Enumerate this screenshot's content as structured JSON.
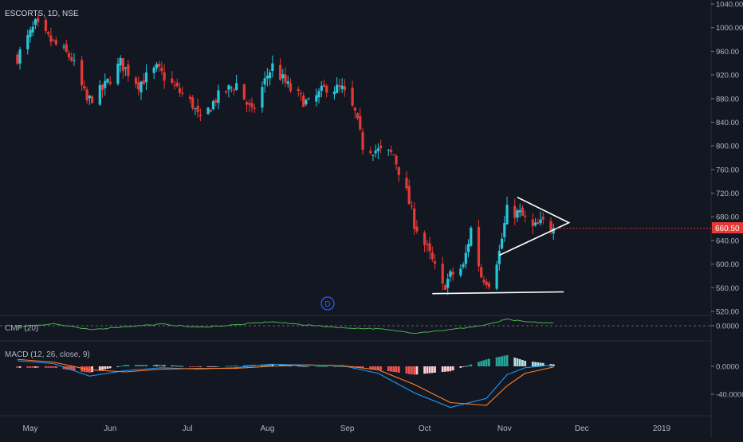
{
  "header": {
    "symbol_label": "ESCORTS, 1D, NSE"
  },
  "colors": {
    "background": "#131722",
    "up": "#26c6da",
    "down": "#e53935",
    "axis_text": "#b2b5be",
    "grid": "#2a2e39",
    "pattern_lines": "#ffffff",
    "cmf_line": "#4caf50",
    "macd_line": "#2196f3",
    "signal_line": "#ff7f27",
    "hist_pos_strong": "#26a69a",
    "hist_pos_weak": "#b2dfdb",
    "hist_neg_strong": "#ef5350",
    "hist_neg_weak": "#ffcdd2",
    "price_tag_bg": "#e53935"
  },
  "price_tag": "660.50",
  "marker_label": "D",
  "chart_data": [
    {
      "type": "candlestick",
      "title": "ESCORTS, 1D, NSE",
      "price_axis_ticks": [
        "1040.00",
        "1000.00",
        "960.00",
        "920.00",
        "880.00",
        "840.00",
        "800.00",
        "760.00",
        "720.00",
        "680.00",
        "640.00",
        "600.00",
        "560.00",
        "520.00"
      ],
      "ylim": [
        520,
        1040
      ],
      "x_axis_labels": [
        "May",
        "Jun",
        "Jul",
        "Aug",
        "Sep",
        "Oct",
        "Nov",
        "Dec",
        "2019"
      ],
      "key_points": [
        {
          "date": "2018-04-26",
          "close": 950
        },
        {
          "date": "2018-05-03",
          "close": 1005
        },
        {
          "date": "2018-05-07",
          "close": 985
        },
        {
          "date": "2018-05-17",
          "close": 948
        },
        {
          "date": "2018-05-23",
          "close": 875
        },
        {
          "date": "2018-05-29",
          "close": 895
        },
        {
          "date": "2018-06-05",
          "close": 940
        },
        {
          "date": "2018-06-12",
          "close": 905
        },
        {
          "date": "2018-06-19",
          "close": 930
        },
        {
          "date": "2018-06-27",
          "close": 895
        },
        {
          "date": "2018-07-03",
          "close": 870
        },
        {
          "date": "2018-07-06",
          "close": 840
        },
        {
          "date": "2018-07-12",
          "close": 880
        },
        {
          "date": "2018-07-20",
          "close": 905
        },
        {
          "date": "2018-07-26",
          "close": 855
        },
        {
          "date": "2018-08-01",
          "close": 920
        },
        {
          "date": "2018-08-03",
          "close": 935
        },
        {
          "date": "2018-08-10",
          "close": 895
        },
        {
          "date": "2018-08-17",
          "close": 870
        },
        {
          "date": "2018-08-24",
          "close": 900
        },
        {
          "date": "2018-08-30",
          "close": 895
        },
        {
          "date": "2018-09-04",
          "close": 855
        },
        {
          "date": "2018-09-07",
          "close": 800
        },
        {
          "date": "2018-09-14",
          "close": 790
        },
        {
          "date": "2018-09-19",
          "close": 785
        },
        {
          "date": "2018-09-24",
          "close": 720
        },
        {
          "date": "2018-09-27",
          "close": 670
        },
        {
          "date": "2018-10-03",
          "close": 615
        },
        {
          "date": "2018-10-08",
          "close": 560
        },
        {
          "date": "2018-10-11",
          "close": 580
        },
        {
          "date": "2018-10-16",
          "close": 595
        },
        {
          "date": "2018-10-19",
          "close": 660
        },
        {
          "date": "2018-10-23",
          "close": 580
        },
        {
          "date": "2018-10-26",
          "close": 570
        },
        {
          "date": "2018-10-30",
          "close": 620
        },
        {
          "date": "2018-11-02",
          "close": 690
        },
        {
          "date": "2018-11-07",
          "close": 685
        },
        {
          "date": "2018-11-12",
          "close": 660
        },
        {
          "date": "2018-11-16",
          "close": 670
        },
        {
          "date": "2018-11-20",
          "close": 660.5
        }
      ],
      "annotations": {
        "triangle": [
          {
            "date": "2018-11-06",
            "price": 713
          },
          {
            "date": "2018-11-26",
            "price": 670
          },
          {
            "date": "2018-10-30",
            "price": 615
          }
        ],
        "support_line": [
          {
            "date": "2018-10-04",
            "price": 550
          },
          {
            "date": "2018-11-24",
            "price": 553
          }
        ]
      }
    },
    {
      "type": "line",
      "title": "CMF (20)",
      "tick_labels": [
        "0.0000"
      ],
      "ylim": [
        -0.3,
        0.3
      ],
      "key_points": [
        {
          "date": "2018-04-26",
          "value": -0.02
        },
        {
          "date": "2018-05-10",
          "value": 0.05
        },
        {
          "date": "2018-05-24",
          "value": -0.1
        },
        {
          "date": "2018-06-07",
          "value": -0.02
        },
        {
          "date": "2018-06-21",
          "value": 0.04
        },
        {
          "date": "2018-07-05",
          "value": -0.04
        },
        {
          "date": "2018-07-19",
          "value": 0.02
        },
        {
          "date": "2018-08-02",
          "value": 0.1
        },
        {
          "date": "2018-08-16",
          "value": 0.02
        },
        {
          "date": "2018-08-30",
          "value": -0.05
        },
        {
          "date": "2018-09-13",
          "value": -0.08
        },
        {
          "date": "2018-09-27",
          "value": -0.18
        },
        {
          "date": "2018-10-11",
          "value": -0.1
        },
        {
          "date": "2018-10-25",
          "value": 0.02
        },
        {
          "date": "2018-11-02",
          "value": 0.16
        },
        {
          "date": "2018-11-09",
          "value": 0.1
        },
        {
          "date": "2018-11-20",
          "value": 0.06
        }
      ]
    },
    {
      "type": "line",
      "title": "MACD (12, 26, close, 9)",
      "tick_labels": [
        "0.0000",
        "-40.0000"
      ],
      "ylim": [
        -60,
        10
      ],
      "series": [
        {
          "key_points": [
            {
              "date": "2018-04-26",
              "value": 8
            },
            {
              "date": "2018-05-10",
              "value": 4
            },
            {
              "date": "2018-05-24",
              "value": -14
            },
            {
              "date": "2018-06-07",
              "value": -6
            },
            {
              "date": "2018-06-21",
              "value": -2
            },
            {
              "date": "2018-07-05",
              "value": -4
            },
            {
              "date": "2018-07-19",
              "value": -2
            },
            {
              "date": "2018-08-02",
              "value": 3
            },
            {
              "date": "2018-08-16",
              "value": 2
            },
            {
              "date": "2018-08-30",
              "value": 1
            },
            {
              "date": "2018-09-13",
              "value": -10
            },
            {
              "date": "2018-09-27",
              "value": -38
            },
            {
              "date": "2018-10-11",
              "value": -59
            },
            {
              "date": "2018-10-25",
              "value": -46
            },
            {
              "date": "2018-11-02",
              "value": -12
            },
            {
              "date": "2018-11-09",
              "value": -2
            },
            {
              "date": "2018-11-20",
              "value": 2
            }
          ]
        },
        {
          "key_points": [
            {
              "date": "2018-04-26",
              "value": 10
            },
            {
              "date": "2018-05-10",
              "value": 6
            },
            {
              "date": "2018-05-24",
              "value": -5
            },
            {
              "date": "2018-06-07",
              "value": -8
            },
            {
              "date": "2018-06-21",
              "value": -4
            },
            {
              "date": "2018-07-05",
              "value": -3
            },
            {
              "date": "2018-07-19",
              "value": -3
            },
            {
              "date": "2018-08-02",
              "value": 0
            },
            {
              "date": "2018-08-16",
              "value": 2
            },
            {
              "date": "2018-08-30",
              "value": 1
            },
            {
              "date": "2018-09-13",
              "value": -5
            },
            {
              "date": "2018-09-27",
              "value": -26
            },
            {
              "date": "2018-10-11",
              "value": -52
            },
            {
              "date": "2018-10-25",
              "value": -56
            },
            {
              "date": "2018-11-02",
              "value": -28
            },
            {
              "date": "2018-11-09",
              "value": -10
            },
            {
              "date": "2018-11-20",
              "value": -1
            }
          ]
        }
      ]
    }
  ]
}
